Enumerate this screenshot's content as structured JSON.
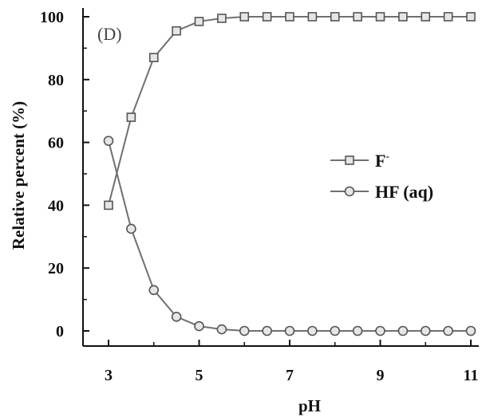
{
  "chart_data": {
    "type": "line",
    "panel_label": "(D)",
    "title": "",
    "xlabel": "pH",
    "ylabel": "Relative percent (%)",
    "xlim": [
      3,
      11
    ],
    "ylim": [
      0,
      100
    ],
    "x_ticks": [
      3,
      5,
      7,
      9,
      11
    ],
    "y_ticks": [
      0,
      20,
      40,
      60,
      80,
      100
    ],
    "x": [
      3,
      3.5,
      4,
      4.5,
      5,
      5.5,
      6,
      6.5,
      7,
      7.5,
      8,
      8.5,
      9,
      9.5,
      10,
      10.5,
      11
    ],
    "series": [
      {
        "name": "F",
        "name_superscript": "-",
        "marker": "square",
        "values": [
          40,
          68,
          87,
          95.5,
          98.5,
          99.5,
          100,
          100,
          100,
          100,
          100,
          100,
          100,
          100,
          100,
          100,
          100
        ]
      },
      {
        "name": "HF (aq)",
        "marker": "circle",
        "values": [
          60.5,
          32.5,
          13,
          4.5,
          1.5,
          0.5,
          0,
          0,
          0,
          0,
          0,
          0,
          0,
          0,
          0,
          0,
          0
        ]
      }
    ],
    "grid": false,
    "legend_position": "right",
    "colors": {
      "line": "#707070",
      "marker_stroke": "#555555",
      "marker_fill": "#e6e6e6",
      "axis": "#111111"
    }
  }
}
